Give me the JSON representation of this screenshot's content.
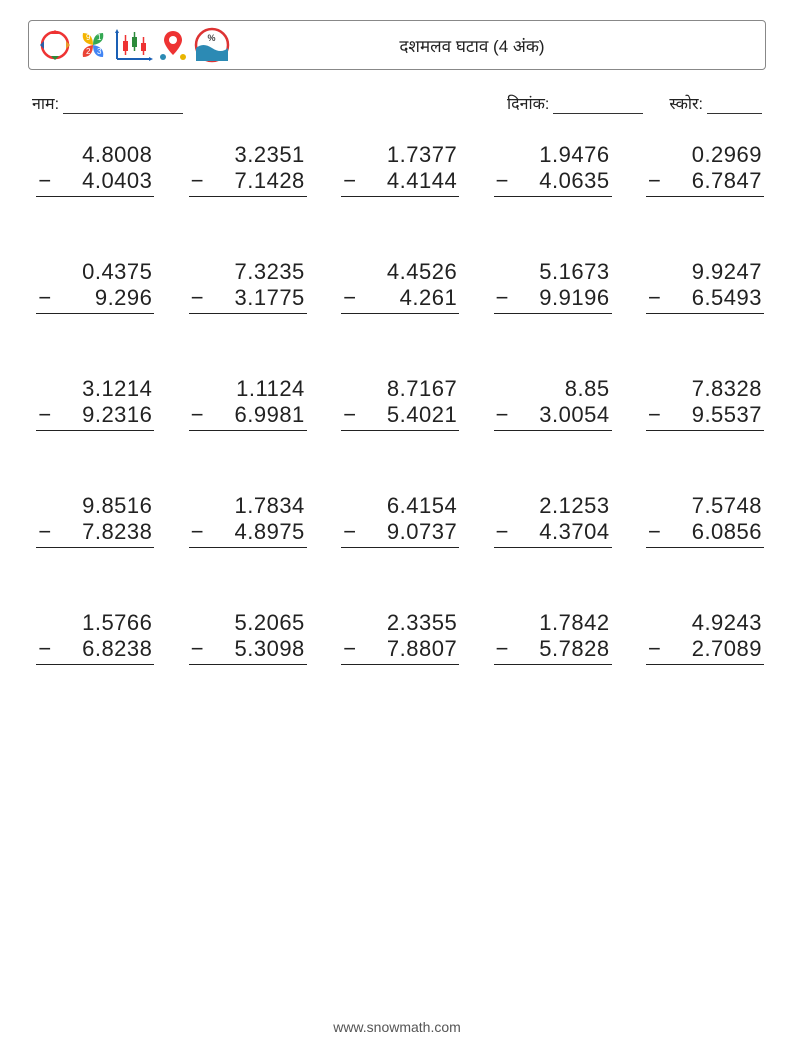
{
  "header": {
    "title": "दशमलव घटाव (4 अंक)"
  },
  "meta": {
    "name_label": "नाम:",
    "date_label": "दिनांक:",
    "score_label": "स्कोर:"
  },
  "worksheet": {
    "type": "vertical-subtraction",
    "operator": "−",
    "columns": 5,
    "rows": 5,
    "font_size_pt": 22,
    "text_color": "#222222",
    "rule_color": "#222222",
    "problems": [
      {
        "minuend": "4.8008",
        "subtrahend": "4.0403"
      },
      {
        "minuend": "3.2351",
        "subtrahend": "7.1428"
      },
      {
        "minuend": "1.7377",
        "subtrahend": "4.4144"
      },
      {
        "minuend": "1.9476",
        "subtrahend": "4.0635"
      },
      {
        "minuend": "0.2969",
        "subtrahend": "6.7847"
      },
      {
        "minuend": "0.4375",
        "subtrahend": "9.296"
      },
      {
        "minuend": "7.3235",
        "subtrahend": "3.1775"
      },
      {
        "minuend": "4.4526",
        "subtrahend": "4.261"
      },
      {
        "minuend": "5.1673",
        "subtrahend": "9.9196"
      },
      {
        "minuend": "9.9247",
        "subtrahend": "6.5493"
      },
      {
        "minuend": "3.1214",
        "subtrahend": "9.2316"
      },
      {
        "minuend": "1.1124",
        "subtrahend": "6.9981"
      },
      {
        "minuend": "8.7167",
        "subtrahend": "5.4021"
      },
      {
        "minuend": "8.85",
        "subtrahend": "3.0054"
      },
      {
        "minuend": "7.8328",
        "subtrahend": "9.5537"
      },
      {
        "minuend": "9.8516",
        "subtrahend": "7.8238"
      },
      {
        "minuend": "1.7834",
        "subtrahend": "4.8975"
      },
      {
        "minuend": "6.4154",
        "subtrahend": "9.0737"
      },
      {
        "minuend": "2.1253",
        "subtrahend": "4.3704"
      },
      {
        "minuend": "7.5748",
        "subtrahend": "6.0856"
      },
      {
        "minuend": "1.5766",
        "subtrahend": "6.8238"
      },
      {
        "minuend": "5.2065",
        "subtrahend": "5.3098"
      },
      {
        "minuend": "2.3355",
        "subtrahend": "7.8807"
      },
      {
        "minuend": "1.7842",
        "subtrahend": "5.7828"
      },
      {
        "minuend": "4.9243",
        "subtrahend": "2.7089"
      }
    ]
  },
  "footer": {
    "text": "www.snowmath.com"
  },
  "colors": {
    "background": "#ffffff",
    "border": "#888888",
    "text": "#222222",
    "footer_text": "#555555"
  }
}
